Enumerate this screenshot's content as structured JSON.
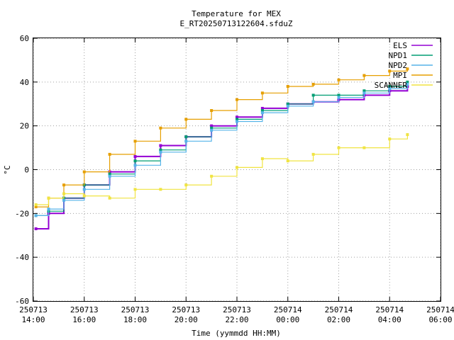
{
  "chart_data": {
    "type": "line",
    "title": "Temperature for MEX",
    "subtitle": "E_RT20250713122604.sfduZ",
    "xlabel": "Time (yymmdd HH:MM)",
    "ylabel": "°C",
    "ylim": [
      -60,
      60
    ],
    "yticks": [
      -60,
      -40,
      -20,
      0,
      20,
      40,
      60
    ],
    "xlim": [
      14,
      30
    ],
    "xticks": [
      {
        "x": 14,
        "date": "250713",
        "time": "14:00"
      },
      {
        "x": 16,
        "date": "250713",
        "time": "16:00"
      },
      {
        "x": 18,
        "date": "250713",
        "time": "18:00"
      },
      {
        "x": 20,
        "date": "250713",
        "time": "20:00"
      },
      {
        "x": 22,
        "date": "250713",
        "time": "22:00"
      },
      {
        "x": 24,
        "date": "250714",
        "time": "00:00"
      },
      {
        "x": 26,
        "date": "250714",
        "time": "02:00"
      },
      {
        "x": 28,
        "date": "250714",
        "time": "04:00"
      },
      {
        "x": 30,
        "date": "250714",
        "time": "06:00"
      }
    ],
    "grid": true,
    "legend": "top-right",
    "series": [
      {
        "name": "ELS",
        "color": "#9400d3",
        "x": [
          14.1,
          14.6,
          15.2,
          16.0,
          17.0,
          18.0,
          19.0,
          20.0,
          21.0,
          22.0,
          23.0,
          24.0,
          25.0,
          26.0,
          27.0,
          28.0,
          28.7
        ],
        "y": [
          -27,
          -20,
          -13,
          -7,
          -1,
          6,
          11,
          15,
          20,
          24,
          28,
          30,
          31,
          32,
          34,
          36,
          38
        ]
      },
      {
        "name": "NPD1",
        "color": "#009e73",
        "x": [
          14.1,
          14.6,
          15.2,
          16.0,
          17.0,
          18.0,
          19.0,
          20.0,
          21.0,
          22.0,
          23.0,
          24.0,
          25.0,
          26.0,
          27.0,
          28.0,
          28.7
        ],
        "y": [
          -21,
          -19,
          -13,
          -7,
          -2,
          4,
          9,
          15,
          19,
          23,
          27,
          30,
          34,
          34,
          36,
          38,
          40
        ]
      },
      {
        "name": "NPD2",
        "color": "#56b4e9",
        "x": [
          14.1,
          14.6,
          15.2,
          16.0,
          17.0,
          18.0,
          19.0,
          20.0,
          21.0,
          22.0,
          23.0,
          24.0,
          25.0,
          26.0,
          27.0,
          28.0,
          28.7
        ],
        "y": [
          -21,
          -18,
          -14,
          -9,
          -3,
          2,
          8,
          13,
          18,
          22,
          26,
          29,
          31,
          33,
          35,
          37,
          39
        ]
      },
      {
        "name": "MPI",
        "color": "#e69f00",
        "x": [
          14.1,
          14.6,
          15.2,
          16.0,
          17.0,
          18.0,
          19.0,
          20.0,
          21.0,
          22.0,
          23.0,
          24.0,
          25.0,
          26.0,
          27.0,
          28.0,
          28.7
        ],
        "y": [
          -17,
          -13,
          -7,
          -1,
          7,
          13,
          19,
          23,
          27,
          32,
          35,
          38,
          39,
          41,
          43,
          45,
          46
        ]
      },
      {
        "name": "SCANNER",
        "color": "#f0e442",
        "x": [
          14.1,
          14.6,
          15.2,
          16.0,
          17.0,
          18.0,
          19.0,
          20.0,
          21.0,
          22.0,
          23.0,
          24.0,
          25.0,
          26.0,
          27.0,
          28.0,
          28.7
        ],
        "y": [
          -16,
          -13,
          -11,
          -12,
          -13,
          -9,
          -9,
          -7,
          -3,
          1,
          5,
          4,
          7,
          10,
          10,
          14,
          16
        ]
      }
    ]
  }
}
